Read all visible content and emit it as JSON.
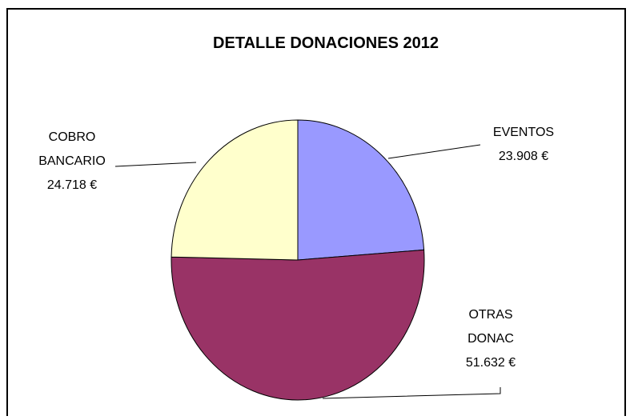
{
  "chart_data": {
    "type": "pie",
    "title": "DETALLE DONACIONES 2012",
    "slices": [
      {
        "name_lines": [
          "EVENTOS"
        ],
        "value_label": "23.908 €",
        "value": 23908,
        "color": "#9999ff"
      },
      {
        "name_lines": [
          "OTRAS",
          "DONAC"
        ],
        "value_label": "51.632 €",
        "value": 51632,
        "color": "#993366"
      },
      {
        "name_lines": [
          "COBRO",
          "BANCARIO"
        ],
        "value_label": "24.718 €",
        "value": 24718,
        "color": "#ffffcc"
      }
    ],
    "start_angle_deg": 0,
    "direction": "clockwise",
    "legend": "none"
  }
}
